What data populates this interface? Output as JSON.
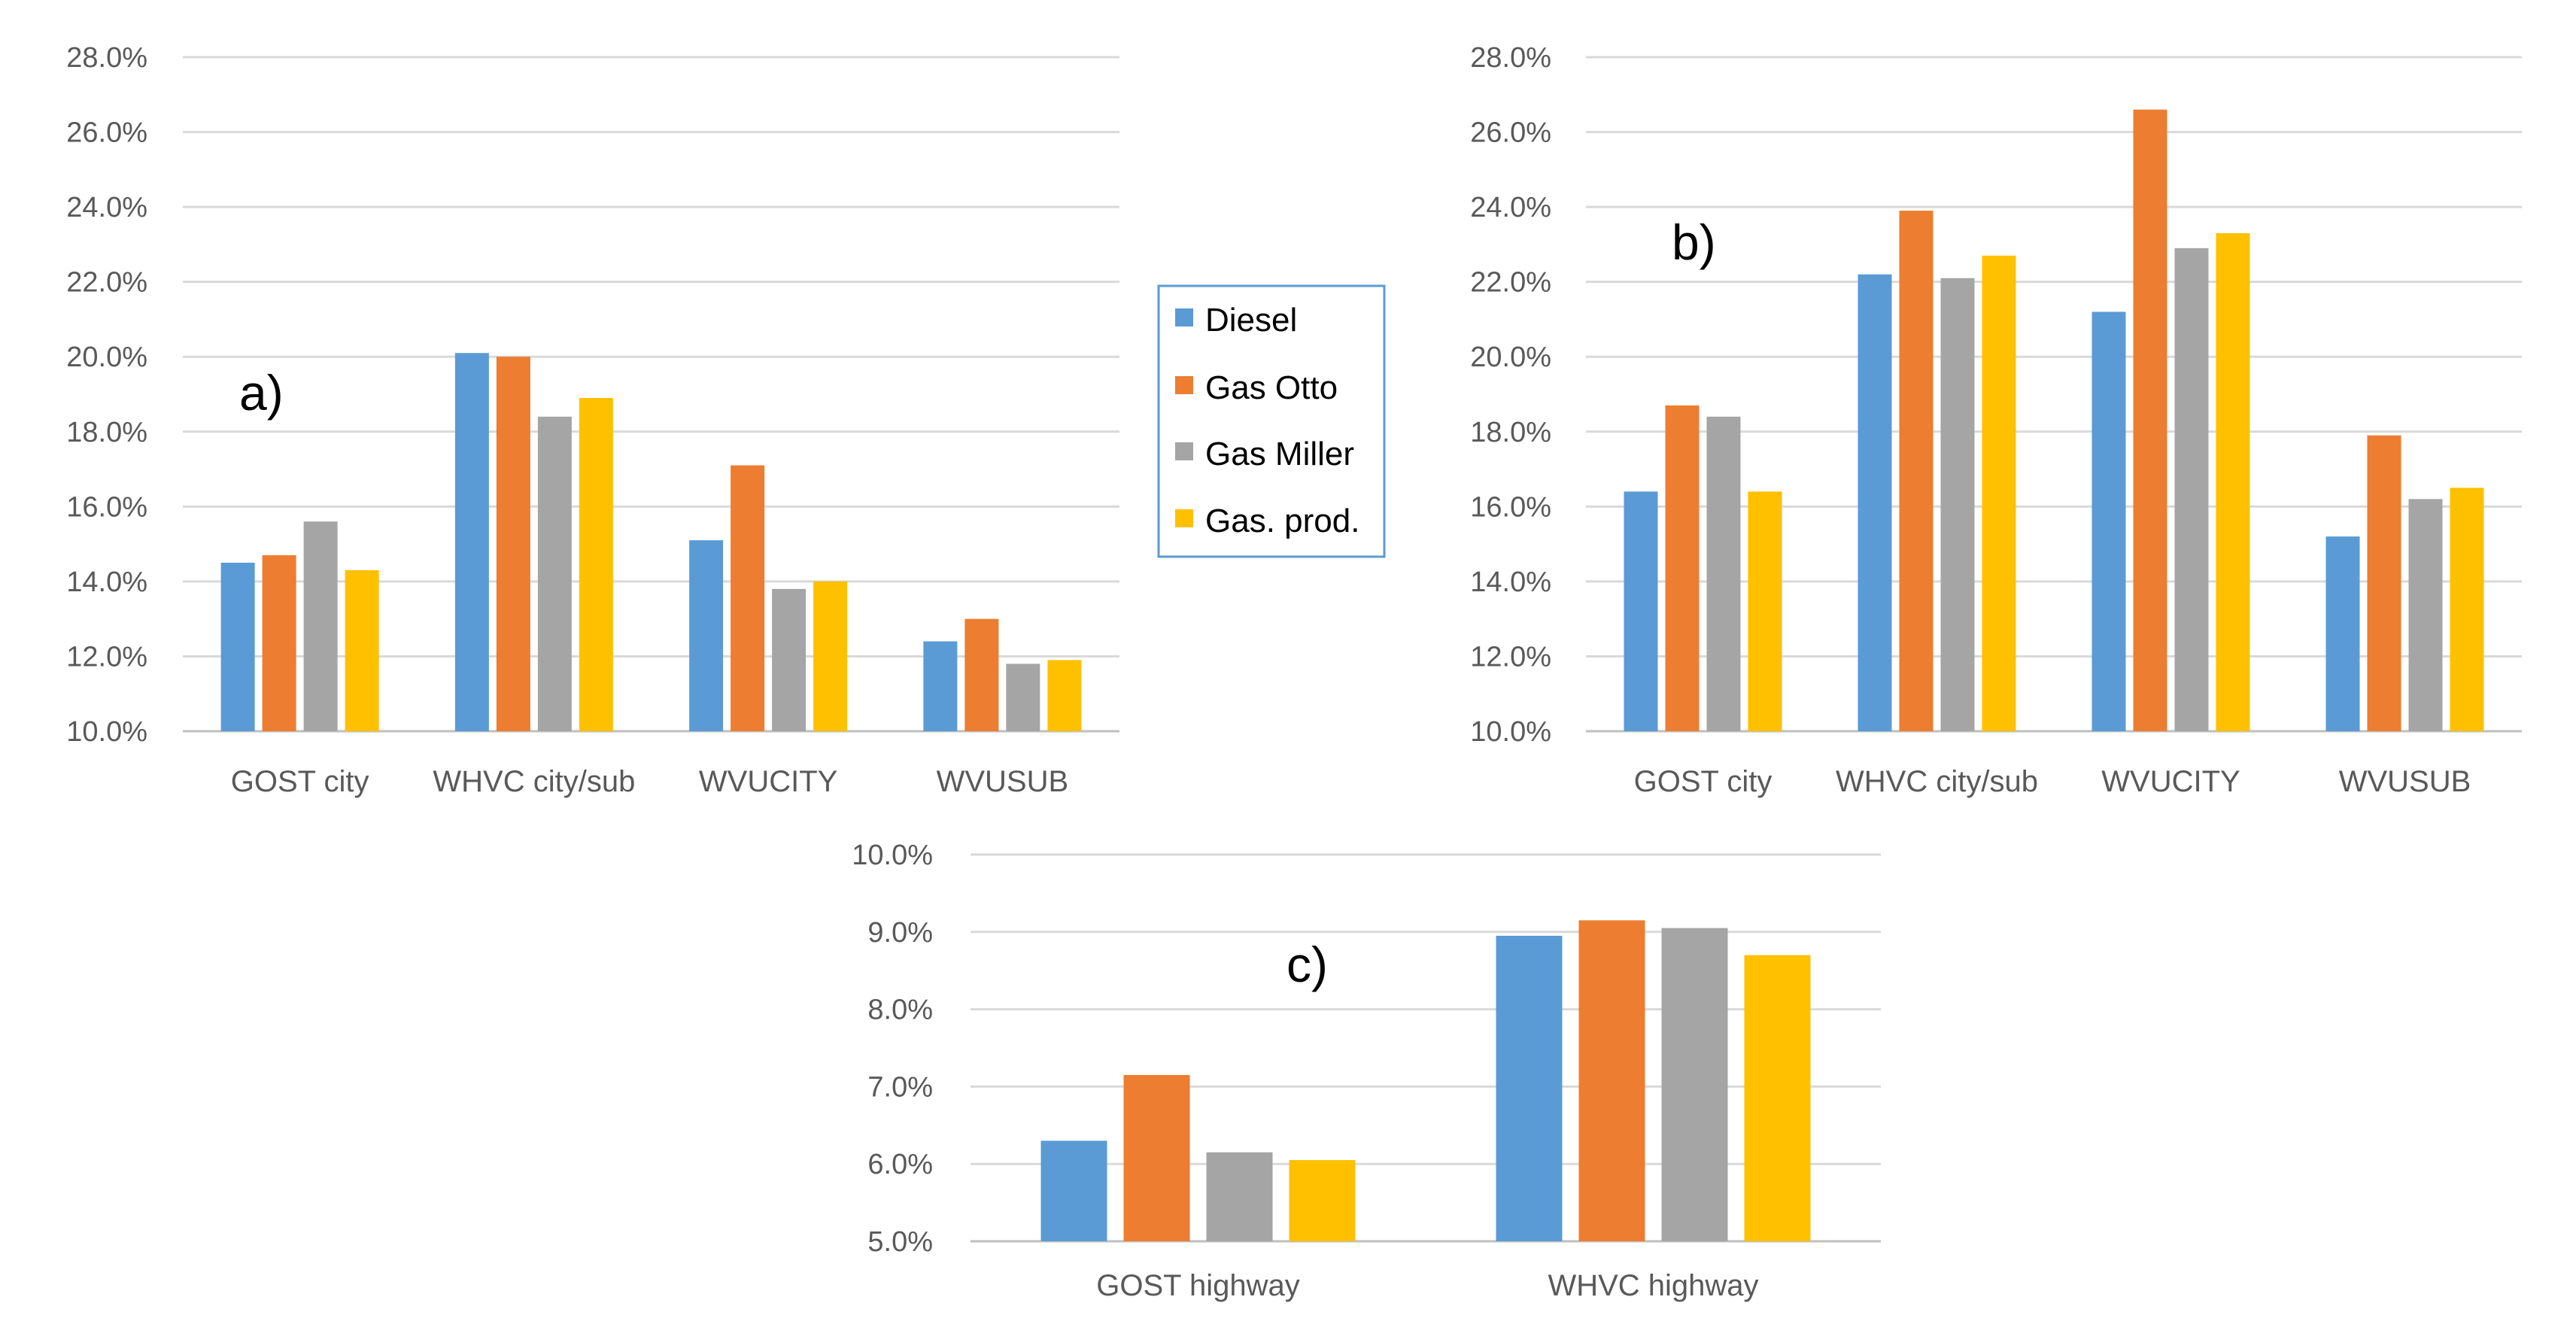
{
  "legend": {
    "entries": [
      "Diesel",
      "Gas Otto",
      "Gas Miller",
      "Gas. prod."
    ]
  },
  "colors": {
    "Diesel": "#5b9bd5",
    "Gas Otto": "#ed7d31",
    "Gas Miller": "#a5a5a5",
    "Gas. prod.": "#ffc000",
    "grid": "#d9d9d9",
    "text": "#595959"
  },
  "chart_data": [
    {
      "panel": "a)",
      "type": "bar",
      "categories": [
        "GOST city",
        "WHVC city/sub",
        "WVUCITY",
        "WVUSUB"
      ],
      "series": [
        {
          "name": "Diesel",
          "values": [
            14.5,
            20.1,
            15.1,
            12.4
          ]
        },
        {
          "name": "Gas Otto",
          "values": [
            14.7,
            20.0,
            17.1,
            13.0
          ]
        },
        {
          "name": "Gas Miller",
          "values": [
            15.6,
            18.4,
            13.8,
            11.8
          ]
        },
        {
          "name": "Gas. prod.",
          "values": [
            14.3,
            18.9,
            14.0,
            11.9
          ]
        }
      ],
      "yticks": [
        "10.0%",
        "12.0%",
        "14.0%",
        "16.0%",
        "18.0%",
        "20.0%",
        "22.0%",
        "24.0%",
        "26.0%",
        "28.0%"
      ],
      "ylim": [
        10,
        28
      ],
      "unit": "%"
    },
    {
      "panel": "b)",
      "type": "bar",
      "categories": [
        "GOST city",
        "WHVC city/sub",
        "WVUCITY",
        "WVUSUB"
      ],
      "series": [
        {
          "name": "Diesel",
          "values": [
            16.4,
            22.2,
            21.2,
            15.2
          ]
        },
        {
          "name": "Gas Otto",
          "values": [
            18.7,
            23.9,
            26.6,
            17.9
          ]
        },
        {
          "name": "Gas Miller",
          "values": [
            18.4,
            22.1,
            22.9,
            16.2
          ]
        },
        {
          "name": "Gas. prod.",
          "values": [
            16.4,
            22.7,
            23.3,
            16.5
          ]
        }
      ],
      "yticks": [
        "10.0%",
        "12.0%",
        "14.0%",
        "16.0%",
        "18.0%",
        "20.0%",
        "22.0%",
        "24.0%",
        "26.0%",
        "28.0%"
      ],
      "ylim": [
        10,
        28
      ],
      "unit": "%"
    },
    {
      "panel": "c)",
      "type": "bar",
      "categories": [
        "GOST highway",
        "WHVC highway"
      ],
      "series": [
        {
          "name": "Diesel",
          "values": [
            6.3,
            8.95
          ]
        },
        {
          "name": "Gas Otto",
          "values": [
            7.15,
            9.15
          ]
        },
        {
          "name": "Gas Miller",
          "values": [
            6.15,
            9.05
          ]
        },
        {
          "name": "Gas. prod.",
          "values": [
            6.05,
            8.7
          ]
        }
      ],
      "yticks": [
        "5.0%",
        "6.0%",
        "7.0%",
        "8.0%",
        "9.0%",
        "10.0%"
      ],
      "ylim": [
        5,
        10
      ],
      "unit": "%"
    }
  ]
}
